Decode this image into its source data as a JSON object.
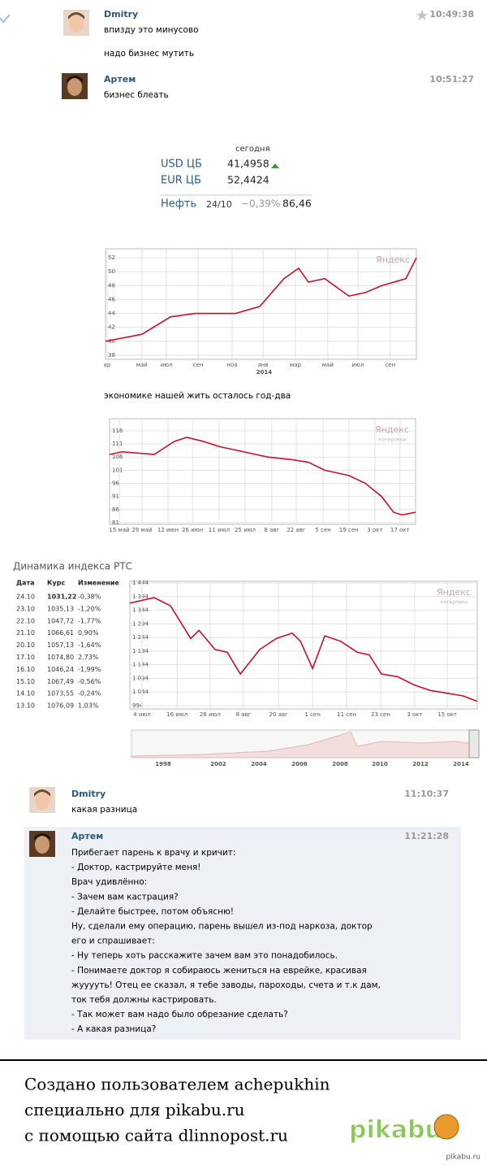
{
  "messages": [
    {
      "name": "Dmitry",
      "time": "10:49:38",
      "lines": [
        "впизду это минусово",
        "надо бизнес мутить"
      ]
    },
    {
      "name": "Артем",
      "time": "10:51:27",
      "lines": [
        "бизнес блеать"
      ]
    },
    {
      "name": "Dmitry",
      "time": "11:10:37",
      "lines": [
        "какая разница"
      ]
    },
    {
      "name": "Артем",
      "time": "11:21:28",
      "lines": [
        "Прибегает парень к врачу и кричит:",
        "- Доктор, кастрируйте меня!",
        "Врач удивлённо:",
        "- Зачем вам кастрация?",
        "- Делайте быстрее, потом объясню!",
        "Ну, сделали ему операцию, парень вышел из-под наркоза, доктор",
        "его и спрашивает:",
        "- Ну теперь хоть расскажите зачем вам это понадобилось.",
        "- Понимаете доктор я собираюсь жениться на еврейке, красивая",
        "жууууть! Отец ее сказал, я тебе заводы, пароходы, счета и т.к дам,",
        "ток тебя должны кастрировать.",
        "- Так может вам надо было обрезание сделать?",
        "- А какая разница?"
      ]
    }
  ],
  "widget": {
    "heading": "сегодня",
    "rows": [
      {
        "label": "USD ЦБ",
        "value": "41,4958"
      },
      {
        "label": "EUR ЦБ",
        "value": "52,4424"
      }
    ],
    "oil": {
      "label": "Нефть",
      "date": "24/10",
      "change": "−0,39%",
      "value": "86,46"
    }
  },
  "caption": "экономике нашей жить осталось год-два",
  "rts": {
    "title": "Динамика индекса РТС",
    "columns": [
      "Дата",
      "Курс",
      "Изменение"
    ],
    "rows": [
      [
        "24.10",
        "1031,22",
        "-0,38%"
      ],
      [
        "23.10",
        "1035,13",
        "-1,20%"
      ],
      [
        "22.10",
        "1047,72",
        "-1,77%"
      ],
      [
        "21.10",
        "1066,61",
        "0,90%"
      ],
      [
        "20.10",
        "1057,13",
        "-1,64%"
      ],
      [
        "17.10",
        "1074,80",
        "2,73%"
      ],
      [
        "16.10",
        "1046,24",
        "-1,99%"
      ],
      [
        "15.10",
        "1067,49",
        "-0,56%"
      ],
      [
        "14.10",
        "1073,55",
        "-0,24%"
      ],
      [
        "13.10",
        "1076,09",
        "1,03%"
      ]
    ]
  },
  "chart_data": [
    {
      "type": "line",
      "watermark": "Яндекс",
      "annotation": "2014",
      "color": "#c8102e",
      "grid": true,
      "xlim": [
        0,
        100
      ],
      "ylim": [
        37.4,
        53.3
      ],
      "xticks": [
        {
          "value": 0.5,
          "label": "ар"
        },
        {
          "value": 11.7,
          "label": "май"
        },
        {
          "value": 19.6,
          "label": "июл"
        },
        {
          "value": 29.8,
          "label": "сен"
        },
        {
          "value": 40.7,
          "label": "ноя"
        },
        {
          "value": 50.7,
          "label": "янв"
        },
        {
          "value": 61.1,
          "label": "мар"
        },
        {
          "value": 71.5,
          "label": "май"
        },
        {
          "value": 81.2,
          "label": "июл"
        },
        {
          "value": 91.6,
          "label": "сен"
        }
      ],
      "yticks": [
        38,
        40,
        42,
        44,
        46,
        48,
        50,
        52
      ],
      "x": [
        0,
        11.7,
        20.9,
        28.7,
        41.8,
        49.6,
        57.4,
        62.1,
        65.3,
        70.5,
        78.3,
        83.6,
        88.8,
        96.6,
        100
      ],
      "values": [
        40,
        41,
        43.5,
        44,
        44,
        45,
        49,
        50.5,
        48.5,
        49,
        46.5,
        47,
        48,
        49,
        52
      ]
    },
    {
      "type": "line",
      "watermark": "Яндекс",
      "watermark_sub": "котировки",
      "color": "#c8102e",
      "grid": true,
      "xlim": [
        0,
        100
      ],
      "ylim": [
        80.4,
        120.6
      ],
      "xticks": [
        {
          "value": 3.2,
          "label": "15 май"
        },
        {
          "value": 10.6,
          "label": "29 май"
        },
        {
          "value": 19.1,
          "label": "12 июн"
        },
        {
          "value": 27.1,
          "label": "26 июн"
        },
        {
          "value": 35.8,
          "label": "11 июл"
        },
        {
          "value": 44.3,
          "label": "25 июл"
        },
        {
          "value": 53,
          "label": "8 авг"
        },
        {
          "value": 61,
          "label": "22 авг"
        },
        {
          "value": 69.8,
          "label": "5 сен"
        },
        {
          "value": 78.2,
          "label": "19 сен"
        },
        {
          "value": 86.7,
          "label": "3 окт"
        },
        {
          "value": 94.9,
          "label": "17 окт"
        }
      ],
      "yticks": [
        81,
        86,
        91,
        96,
        101,
        106,
        111,
        116
      ],
      "x": [
        0,
        4,
        14.6,
        21.2,
        25.2,
        30.5,
        35.8,
        43.8,
        51.7,
        59.7,
        65,
        70.3,
        78.2,
        83.6,
        88.9,
        92.8,
        95.5,
        100
      ],
      "values": [
        107,
        108,
        107,
        112,
        113.5,
        112,
        110,
        108,
        106,
        105,
        104,
        101,
        99,
        96,
        91,
        85,
        84,
        85
      ]
    },
    {
      "type": "line",
      "watermark": "Яндекс",
      "watermark_sub": "котировки",
      "color": "#c8102e",
      "grid": true,
      "xlim": [
        0,
        100
      ],
      "ylim": [
        982,
        1450
      ],
      "xticks": [
        {
          "value": 3.5,
          "label": "4 июл"
        },
        {
          "value": 13.6,
          "label": "16 июл"
        },
        {
          "value": 23.1,
          "label": "28 июл"
        },
        {
          "value": 32.7,
          "label": "8 авг"
        },
        {
          "value": 42.8,
          "label": "20 авг"
        },
        {
          "value": 52.6,
          "label": "1 сен"
        },
        {
          "value": 62.4,
          "label": "11 сен"
        },
        {
          "value": 72.2,
          "label": "23 сен"
        },
        {
          "value": 82,
          "label": "3 окт"
        },
        {
          "value": 91.4,
          "label": "15 окт"
        }
      ],
      "yticks": [
        994,
        {
          "value": 1044,
          "label": "1 044"
        },
        {
          "value": 1094,
          "label": "1 094"
        },
        {
          "value": 1144,
          "label": "1 144"
        },
        {
          "value": 1194,
          "label": "1 194"
        },
        {
          "value": 1244,
          "label": "1 244"
        },
        {
          "value": 1294,
          "label": "1 294"
        },
        {
          "value": 1344,
          "label": "1 344"
        },
        {
          "value": 1394,
          "label": "1 394"
        },
        {
          "value": 1444,
          "label": "1 444"
        }
      ],
      "x": [
        0,
        7,
        11.7,
        17.5,
        19.9,
        24.5,
        28,
        31.8,
        37.4,
        42.1,
        46.7,
        49.1,
        52.6,
        56.1,
        60.7,
        65.4,
        68.9,
        72.4,
        77.1,
        81.8,
        86.4,
        91.1,
        95.8,
        100
      ],
      "values": [
        1370,
        1390,
        1360,
        1240,
        1270,
        1200,
        1190,
        1110,
        1200,
        1240,
        1260,
        1230,
        1130,
        1250,
        1230,
        1190,
        1180,
        1110,
        1100,
        1070,
        1050,
        1040,
        1030,
        1010
      ],
      "navigator_labels": [
        "1998",
        "2002",
        "2004",
        "2006",
        "2008",
        "2010",
        "2012",
        "2014"
      ]
    }
  ],
  "footer": {
    "lines": [
      "Создано пользователем achepukhin",
      "специально для pikabu.ru",
      "с помощью сайта dlinnopost.ru"
    ],
    "logo": "pikabu",
    "site": "pikabu.ru"
  }
}
